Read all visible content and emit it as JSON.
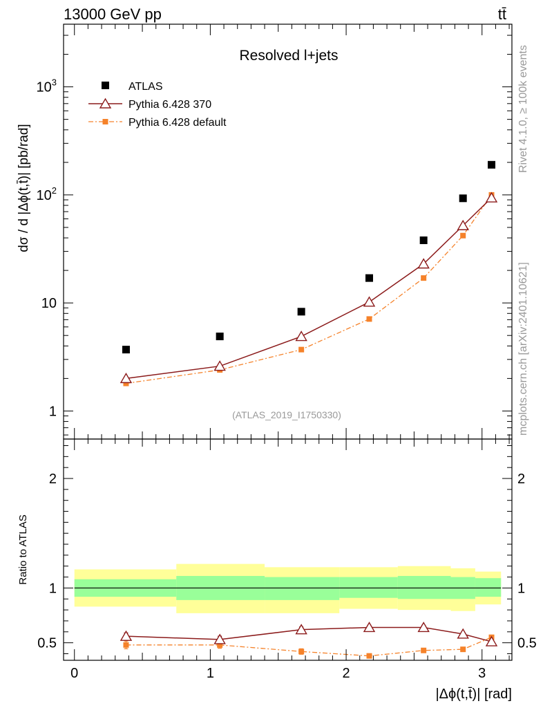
{
  "header": {
    "left": "13000 GeV pp",
    "right": "tt̄"
  },
  "side_labels": {
    "rivet": "Rivet 4.1.0, ≥ 100k events",
    "mcplots": "mcplots.cern.ch [arXiv:2401.10621]"
  },
  "colors": {
    "data": "#000000",
    "pythia370": "#8b1a1a",
    "pythia_default": "#f5822a",
    "band_inner": "#99ff99",
    "band_outer": "#ffff99",
    "watermark": "#999999"
  },
  "chart_data": [
    {
      "type": "scatter",
      "panel": "main",
      "title": "Resolved l+jets",
      "watermark": "(ATLAS_2019_I1750330)",
      "ylabel": "dσ / d |Δϕ(t,t̄)| [pb/rad]",
      "yscale": "log",
      "ylim": [
        0.55,
        3800
      ],
      "xlim": [
        -0.08,
        3.22
      ],
      "yticks": [
        1,
        10,
        100,
        1000
      ],
      "ytick_labels": [
        "1",
        "10",
        "10²",
        "10³"
      ],
      "legend": [
        {
          "key": "atlas",
          "label": "ATLAS"
        },
        {
          "key": "p370",
          "label": "Pythia 6.428 370"
        },
        {
          "key": "pdef",
          "label": "Pythia 6.428 default"
        }
      ],
      "legend_position": "top-left",
      "series": [
        {
          "key": "atlas",
          "name": "ATLAS",
          "style": "square-markers",
          "x": [
            0.38,
            1.07,
            1.67,
            2.17,
            2.57,
            2.86,
            3.07
          ],
          "values": [
            3.7,
            4.9,
            8.3,
            17,
            38,
            93,
            190
          ]
        },
        {
          "key": "p370",
          "name": "Pythia 6.428 370",
          "style": "solid-line-open-triangle",
          "x": [
            0.38,
            1.07,
            1.67,
            2.17,
            2.57,
            2.86,
            3.07
          ],
          "values": [
            2.0,
            2.6,
            4.9,
            10.2,
            23,
            52,
            94
          ]
        },
        {
          "key": "pdef",
          "name": "Pythia 6.428 default",
          "style": "dashdot-line-filled-square",
          "x": [
            0.38,
            1.07,
            1.67,
            2.17,
            2.57,
            2.86,
            3.07
          ],
          "values": [
            1.8,
            2.4,
            3.7,
            7.1,
            17,
            42,
            100
          ]
        }
      ]
    },
    {
      "type": "scatter",
      "panel": "ratio",
      "ylabel": "Ratio to ATLAS",
      "xlabel": "|Δϕ(t,t̄)| [rad]",
      "ylim": [
        0.34,
        2.36
      ],
      "xlim": [
        -0.08,
        3.22
      ],
      "xticks": [
        0,
        1,
        2,
        3
      ],
      "xtick_labels": [
        "0",
        "1",
        "2",
        "3"
      ],
      "yticks": [
        0.5,
        1,
        2
      ],
      "ytick_labels": [
        "0.5",
        "1",
        "2"
      ],
      "reference_line": 1.0,
      "bands": {
        "edges": [
          0.0,
          0.75,
          1.4,
          1.95,
          2.38,
          2.77,
          2.95,
          3.14
        ],
        "outer_low": [
          0.83,
          0.77,
          0.77,
          0.81,
          0.8,
          0.79,
          0.85,
          0.86
        ],
        "outer_high": [
          1.17,
          1.22,
          1.19,
          1.19,
          1.2,
          1.18,
          1.15,
          1.14
        ],
        "inner_low": [
          0.92,
          0.89,
          0.89,
          0.91,
          0.9,
          0.9,
          0.92,
          0.93
        ],
        "inner_high": [
          1.08,
          1.11,
          1.1,
          1.1,
          1.11,
          1.1,
          1.09,
          1.08
        ]
      },
      "series": [
        {
          "key": "p370",
          "name": "Pythia 6.428 370",
          "x": [
            0.38,
            1.07,
            1.67,
            2.17,
            2.57,
            2.86,
            3.07
          ],
          "values": [
            0.56,
            0.53,
            0.62,
            0.64,
            0.64,
            0.58,
            0.51
          ],
          "errors": [
            0.03,
            0.03,
            0.025,
            0.02,
            0.02,
            0.015,
            0.015
          ]
        },
        {
          "key": "pdef",
          "name": "Pythia 6.428 default",
          "x": [
            0.38,
            1.07,
            1.67,
            2.17,
            2.57,
            2.86,
            3.07
          ],
          "values": [
            0.48,
            0.48,
            0.42,
            0.38,
            0.43,
            0.44,
            0.55
          ],
          "errors": [
            0.035,
            0.03,
            0.025,
            0.02,
            0.015,
            0.012,
            0.015
          ]
        }
      ]
    }
  ]
}
